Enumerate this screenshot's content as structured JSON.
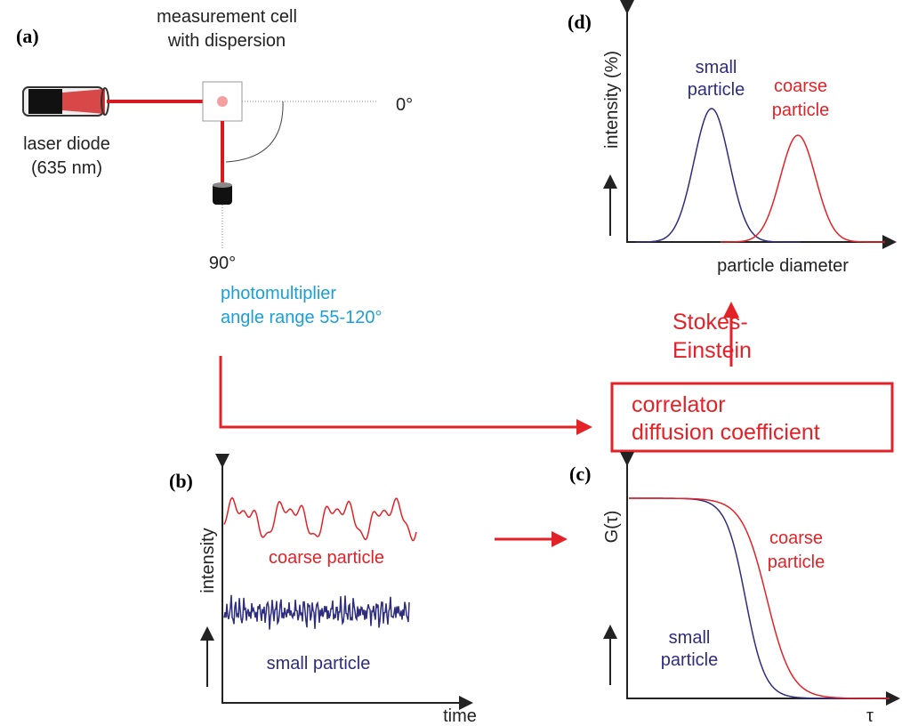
{
  "panel_a": {
    "label": "(a)",
    "cell": [
      "measurement cell",
      "with dispersion"
    ],
    "laser": [
      "laser diode",
      "(635 nm)"
    ],
    "angle_0": "0°",
    "angle_90": "90°",
    "detector": [
      "photomultiplier",
      "angle range 55-120°"
    ]
  },
  "panel_d": {
    "label": "(d)",
    "y_label": "intensity (%)",
    "small": [
      "small",
      "particle"
    ],
    "coarse": [
      "coarse",
      "particle"
    ],
    "x_label": "particle diameter"
  },
  "stokes": [
    "Stokes-",
    "Einstein"
  ],
  "correlator_box": [
    "correlator",
    "diffusion coefficient"
  ],
  "panel_b": {
    "label": "(b)",
    "y_label": "intensity",
    "coarse": "coarse particle",
    "small": "small particle",
    "x_label": "time"
  },
  "panel_c": {
    "label": "(c)",
    "y_label": "G(τ)",
    "coarse": [
      "coarse",
      "particle"
    ],
    "small": [
      "small",
      "particle"
    ],
    "x_label": "τ"
  }
}
